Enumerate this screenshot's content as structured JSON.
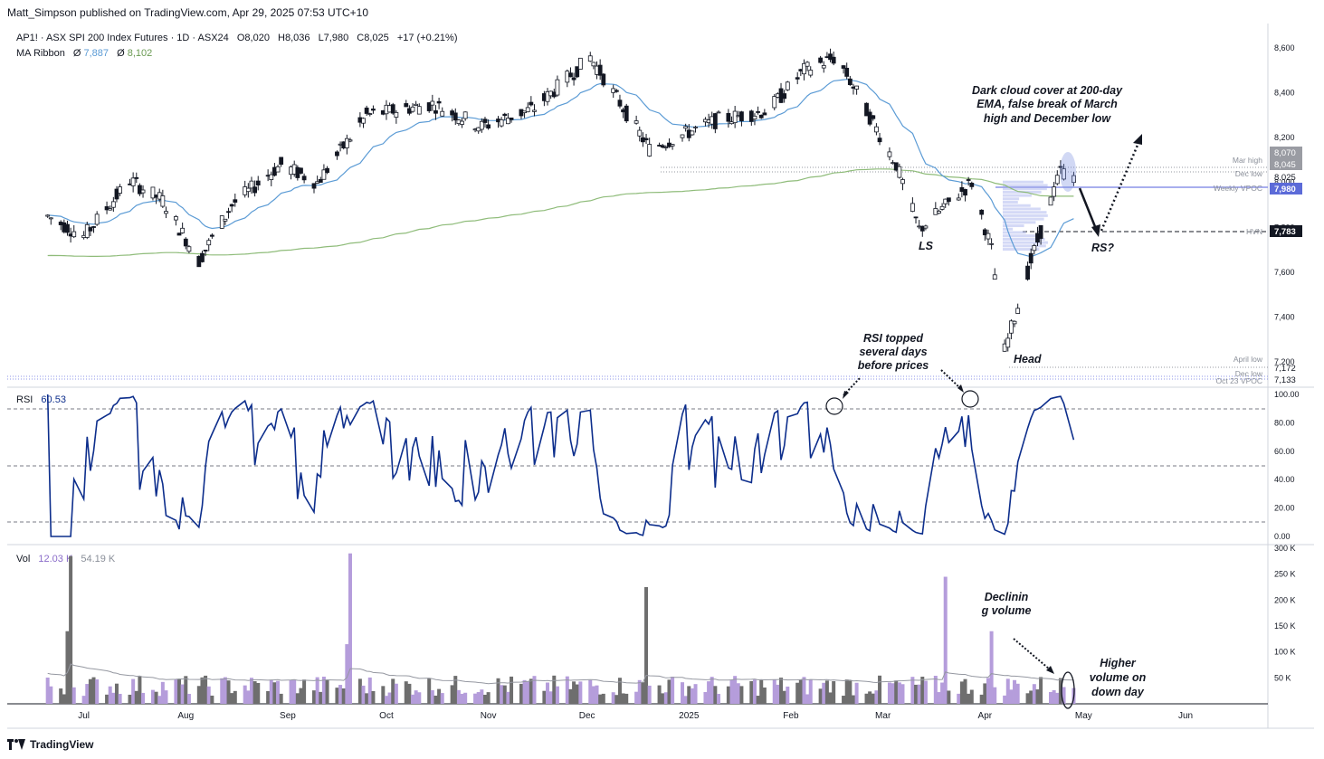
{
  "header": "Matt_Simpson published on TradingView.com, Apr 29, 2025 07:53 UTC+10",
  "legend": {
    "symbol": "AP1! · ASX SPI 200 Index Futures · 1D · ASX24",
    "open": "O8,020",
    "high": "H8,036",
    "low": "L7,980",
    "close": "C8,025",
    "change": "+17 (+0.21%)",
    "ma_label": "MA Ribbon",
    "ma1_prefix": "Ø",
    "ma1": "7,887",
    "ma2_prefix": "Ø",
    "ma2": "8,102"
  },
  "rsi_legend": {
    "label": "RSI",
    "value": "60.53"
  },
  "vol_legend": {
    "label": "Vol",
    "v1": "12.03 K",
    "v2": "54.19 K"
  },
  "footer": "TradingView",
  "colors": {
    "ema_fast": "#5b9bd5",
    "ema_slow": "#8fbc7a",
    "rsi_line": "#0d2e8c",
    "vol_up": "#b59ddb",
    "vol_down": "#6e6e6e",
    "candle": "#131722"
  },
  "chart_data": [
    {
      "type": "line",
      "title": "AP1! · ASX SPI 200 Index Futures · 1D · ASX24",
      "y_ticks": [
        "8,600",
        "8,400",
        "8,200",
        "8,000",
        "7,800",
        "7,600",
        "7,400",
        "7,200"
      ],
      "ylim": [
        7120,
        8660
      ],
      "x_ticks": [
        "Jul",
        "Aug",
        "Sep",
        "Oct",
        "Nov",
        "Dec",
        "2025",
        "Feb",
        "Mar",
        "Apr",
        "May",
        "Jun"
      ],
      "approximate_close_path": [
        {
          "x": "2024-06-20",
          "y": 7850
        },
        {
          "x": "2024-07-01",
          "y": 7760
        },
        {
          "x": "2024-07-15",
          "y": 8010
        },
        {
          "x": "2024-07-25",
          "y": 7920
        },
        {
          "x": "2024-08-05",
          "y": 7650
        },
        {
          "x": "2024-08-15",
          "y": 7900
        },
        {
          "x": "2024-08-30",
          "y": 8080
        },
        {
          "x": "2024-09-10",
          "y": 8000
        },
        {
          "x": "2024-09-25",
          "y": 8300
        },
        {
          "x": "2024-10-15",
          "y": 8350
        },
        {
          "x": "2024-10-30",
          "y": 8250
        },
        {
          "x": "2024-11-15",
          "y": 8330
        },
        {
          "x": "2024-12-02",
          "y": 8560
        },
        {
          "x": "2024-12-20",
          "y": 8150
        },
        {
          "x": "2025-01-10",
          "y": 8280
        },
        {
          "x": "2025-01-25",
          "y": 8320
        },
        {
          "x": "2025-02-05",
          "y": 8500
        },
        {
          "x": "2025-02-15",
          "y": 8560
        },
        {
          "x": "2025-03-05",
          "y": 8080
        },
        {
          "x": "2025-03-12",
          "y": 7790
        },
        {
          "x": "2025-03-28",
          "y": 8000
        },
        {
          "x": "2025-04-03",
          "y": 7700
        },
        {
          "x": "2025-04-07",
          "y": 7250
        },
        {
          "x": "2025-04-15",
          "y": 7650
        },
        {
          "x": "2025-04-24",
          "y": 8050
        },
        {
          "x": "2025-04-28",
          "y": 8025
        }
      ],
      "series": [
        {
          "name": "Ø 7,887",
          "last": 7887
        },
        {
          "name": "Ø 8,102",
          "last": 8102
        }
      ],
      "price_labels": [
        {
          "label": "Mar high",
          "value": "8,070"
        },
        {
          "label": "Dec low",
          "value": "8,045"
        },
        {
          "label": "",
          "value": "8,025"
        },
        {
          "label": "Weekly VPOC",
          "value": "7,980"
        },
        {
          "label": "HVN",
          "value": "7,783"
        },
        {
          "label": "April low",
          "value": "7,172"
        },
        {
          "label": "Dec low",
          "value": "7,133"
        },
        {
          "label": "Oct 23 VPOC",
          "value": ""
        }
      ],
      "annotations": [
        {
          "text_lines": [
            "Dark cloud cover at 200-day",
            "EMA, false break of March",
            "high and December low"
          ]
        },
        {
          "text_lines": [
            "LS"
          ]
        },
        {
          "text_lines": [
            "RS?"
          ]
        },
        {
          "text_lines": [
            "Head"
          ]
        }
      ]
    },
    {
      "type": "line",
      "title": "RSI 60.53",
      "ylim": [
        0,
        100
      ],
      "y_ticks": [
        "100.00",
        "80.00",
        "60.00",
        "40.00",
        "20.00",
        "0.00"
      ],
      "levels": [
        90,
        50,
        10
      ],
      "annotations": [
        {
          "text_lines": [
            "RSI topped",
            "several days",
            "before prices"
          ]
        }
      ]
    },
    {
      "type": "bar",
      "title": "Vol 12.03 K 54.19 K",
      "y_ticks": [
        "300 K",
        "250 K",
        "200 K",
        "150 K",
        "100 K",
        "50 K"
      ],
      "ylim": [
        0,
        300
      ],
      "notable_bars_k": [
        {
          "x": "2024-06-26",
          "y": 140
        },
        {
          "x": "2024-06-27",
          "y": 285
        },
        {
          "x": "2024-09-19",
          "y": 115
        },
        {
          "x": "2024-09-20",
          "y": 290
        },
        {
          "x": "2024-12-19",
          "y": 225
        },
        {
          "x": "2025-03-20",
          "y": 245
        },
        {
          "x": "2025-04-03",
          "y": 140
        }
      ],
      "annotations": [
        {
          "text_lines": [
            "Declinin",
            "g volume"
          ]
        },
        {
          "text_lines": [
            "Higher",
            "volume on",
            "down day"
          ]
        }
      ]
    }
  ]
}
